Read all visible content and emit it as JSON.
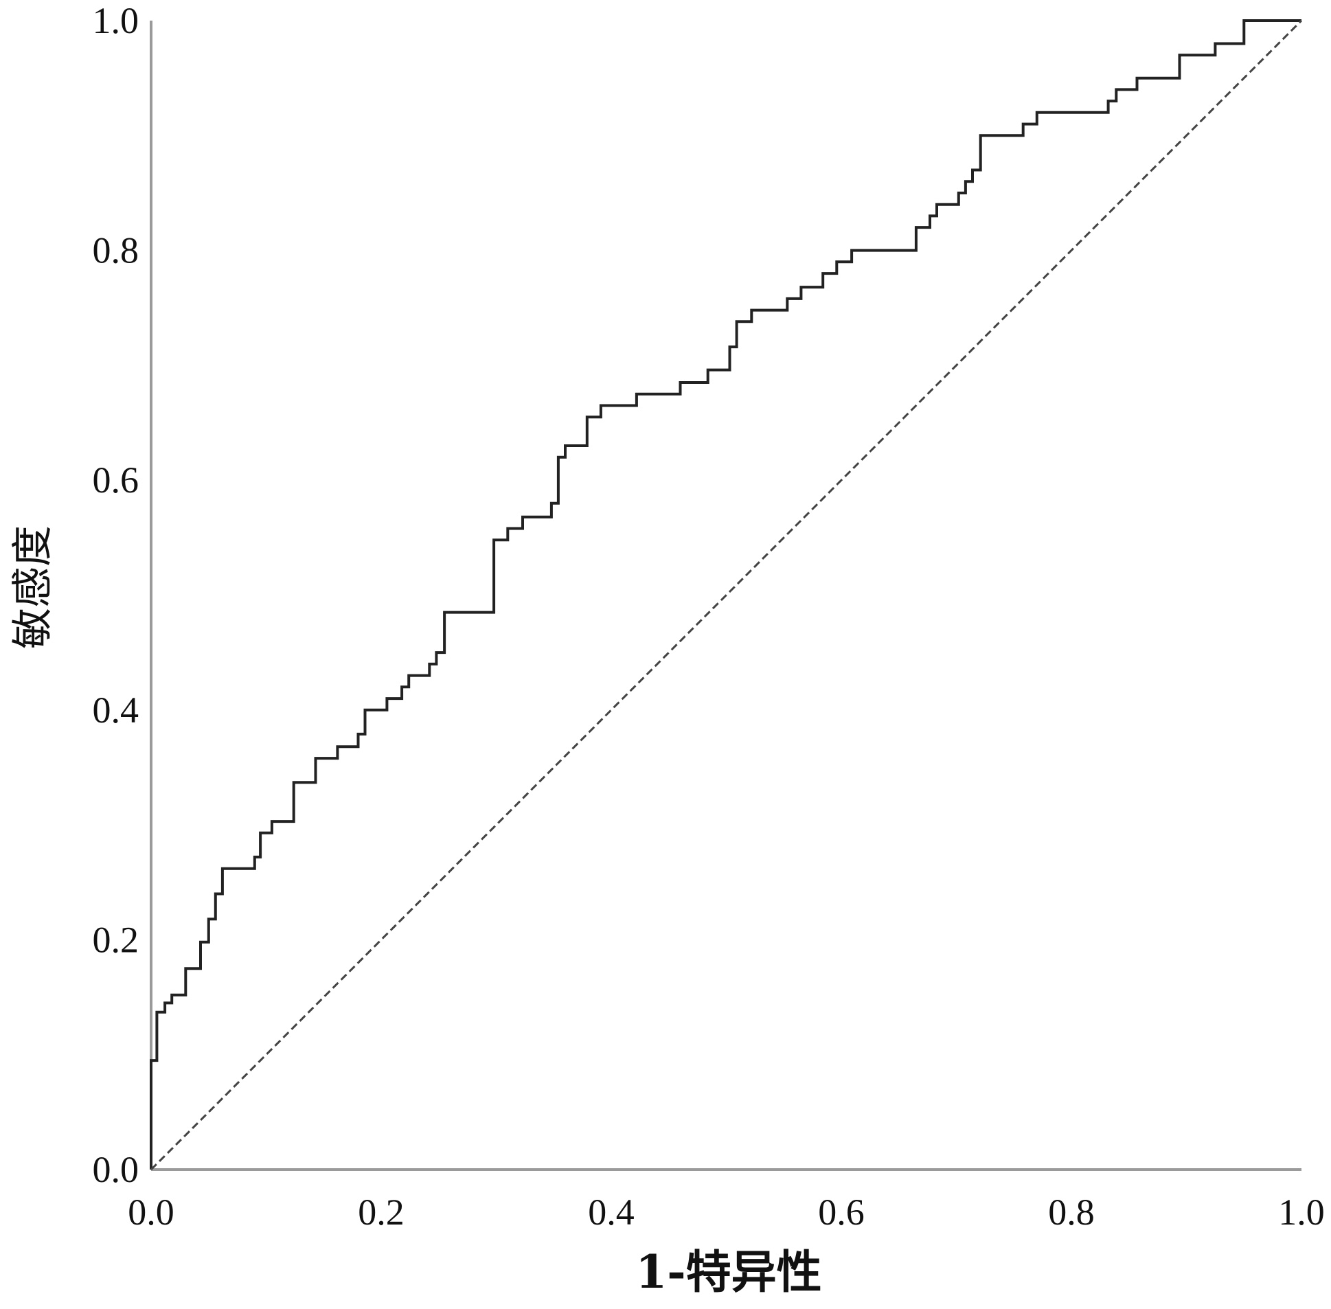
{
  "colors": {
    "axis": "#9a9a9a",
    "roc_line": "#222222",
    "reference_line": "#444444",
    "text": "#111111",
    "background": "#ffffff"
  },
  "chart_data": {
    "type": "line",
    "title": "",
    "xlabel": "1-特异性",
    "ylabel": "敏感度",
    "xlim": [
      0,
      1
    ],
    "ylim": [
      0,
      1
    ],
    "x_ticks": [
      "0.0",
      "0.2",
      "0.4",
      "0.6",
      "0.8",
      "1.0"
    ],
    "y_ticks": [
      "0.0",
      "0.2",
      "0.4",
      "0.6",
      "0.8",
      "1.0"
    ],
    "grid": false,
    "legend": "none",
    "series": [
      {
        "style": "solid-step",
        "points": [
          [
            0.0,
            0.0
          ],
          [
            0.0,
            0.095
          ],
          [
            0.005,
            0.095
          ],
          [
            0.005,
            0.137
          ],
          [
            0.012,
            0.137
          ],
          [
            0.012,
            0.145
          ],
          [
            0.018,
            0.145
          ],
          [
            0.018,
            0.152
          ],
          [
            0.03,
            0.152
          ],
          [
            0.03,
            0.175
          ],
          [
            0.043,
            0.175
          ],
          [
            0.043,
            0.198
          ],
          [
            0.05,
            0.198
          ],
          [
            0.05,
            0.218
          ],
          [
            0.056,
            0.218
          ],
          [
            0.056,
            0.24
          ],
          [
            0.062,
            0.24
          ],
          [
            0.062,
            0.262
          ],
          [
            0.09,
            0.262
          ],
          [
            0.09,
            0.272
          ],
          [
            0.095,
            0.272
          ],
          [
            0.095,
            0.293
          ],
          [
            0.105,
            0.293
          ],
          [
            0.105,
            0.303
          ],
          [
            0.124,
            0.303
          ],
          [
            0.124,
            0.337
          ],
          [
            0.143,
            0.337
          ],
          [
            0.143,
            0.358
          ],
          [
            0.162,
            0.358
          ],
          [
            0.162,
            0.368
          ],
          [
            0.18,
            0.368
          ],
          [
            0.18,
            0.379
          ],
          [
            0.186,
            0.379
          ],
          [
            0.186,
            0.4
          ],
          [
            0.205,
            0.4
          ],
          [
            0.205,
            0.41
          ],
          [
            0.218,
            0.41
          ],
          [
            0.218,
            0.42
          ],
          [
            0.224,
            0.42
          ],
          [
            0.224,
            0.43
          ],
          [
            0.242,
            0.43
          ],
          [
            0.242,
            0.44
          ],
          [
            0.248,
            0.44
          ],
          [
            0.248,
            0.45
          ],
          [
            0.255,
            0.45
          ],
          [
            0.255,
            0.485
          ],
          [
            0.298,
            0.485
          ],
          [
            0.298,
            0.548
          ],
          [
            0.31,
            0.548
          ],
          [
            0.31,
            0.558
          ],
          [
            0.323,
            0.558
          ],
          [
            0.323,
            0.568
          ],
          [
            0.348,
            0.568
          ],
          [
            0.348,
            0.58
          ],
          [
            0.354,
            0.58
          ],
          [
            0.354,
            0.62
          ],
          [
            0.36,
            0.62
          ],
          [
            0.36,
            0.63
          ],
          [
            0.379,
            0.63
          ],
          [
            0.379,
            0.655
          ],
          [
            0.391,
            0.655
          ],
          [
            0.391,
            0.665
          ],
          [
            0.422,
            0.665
          ],
          [
            0.422,
            0.675
          ],
          [
            0.46,
            0.675
          ],
          [
            0.46,
            0.685
          ],
          [
            0.484,
            0.685
          ],
          [
            0.484,
            0.696
          ],
          [
            0.503,
            0.696
          ],
          [
            0.503,
            0.716
          ],
          [
            0.509,
            0.716
          ],
          [
            0.509,
            0.738
          ],
          [
            0.522,
            0.738
          ],
          [
            0.522,
            0.748
          ],
          [
            0.553,
            0.748
          ],
          [
            0.553,
            0.758
          ],
          [
            0.565,
            0.758
          ],
          [
            0.565,
            0.768
          ],
          [
            0.584,
            0.768
          ],
          [
            0.584,
            0.78
          ],
          [
            0.596,
            0.78
          ],
          [
            0.596,
            0.79
          ],
          [
            0.609,
            0.79
          ],
          [
            0.609,
            0.8
          ],
          [
            0.665,
            0.8
          ],
          [
            0.665,
            0.82
          ],
          [
            0.677,
            0.82
          ],
          [
            0.677,
            0.83
          ],
          [
            0.683,
            0.83
          ],
          [
            0.683,
            0.84
          ],
          [
            0.702,
            0.84
          ],
          [
            0.702,
            0.85
          ],
          [
            0.708,
            0.85
          ],
          [
            0.708,
            0.86
          ],
          [
            0.714,
            0.86
          ],
          [
            0.714,
            0.87
          ],
          [
            0.721,
            0.87
          ],
          [
            0.721,
            0.9
          ],
          [
            0.758,
            0.9
          ],
          [
            0.758,
            0.91
          ],
          [
            0.77,
            0.91
          ],
          [
            0.77,
            0.92
          ],
          [
            0.832,
            0.92
          ],
          [
            0.832,
            0.93
          ],
          [
            0.839,
            0.93
          ],
          [
            0.839,
            0.94
          ],
          [
            0.857,
            0.94
          ],
          [
            0.857,
            0.95
          ],
          [
            0.894,
            0.95
          ],
          [
            0.894,
            0.97
          ],
          [
            0.925,
            0.97
          ],
          [
            0.925,
            0.98
          ],
          [
            0.95,
            0.98
          ],
          [
            0.95,
            1.0
          ],
          [
            1.0,
            1.0
          ]
        ]
      },
      {
        "style": "dashed-diagonal",
        "points": [
          [
            0,
            0
          ],
          [
            1,
            1
          ]
        ]
      }
    ]
  }
}
